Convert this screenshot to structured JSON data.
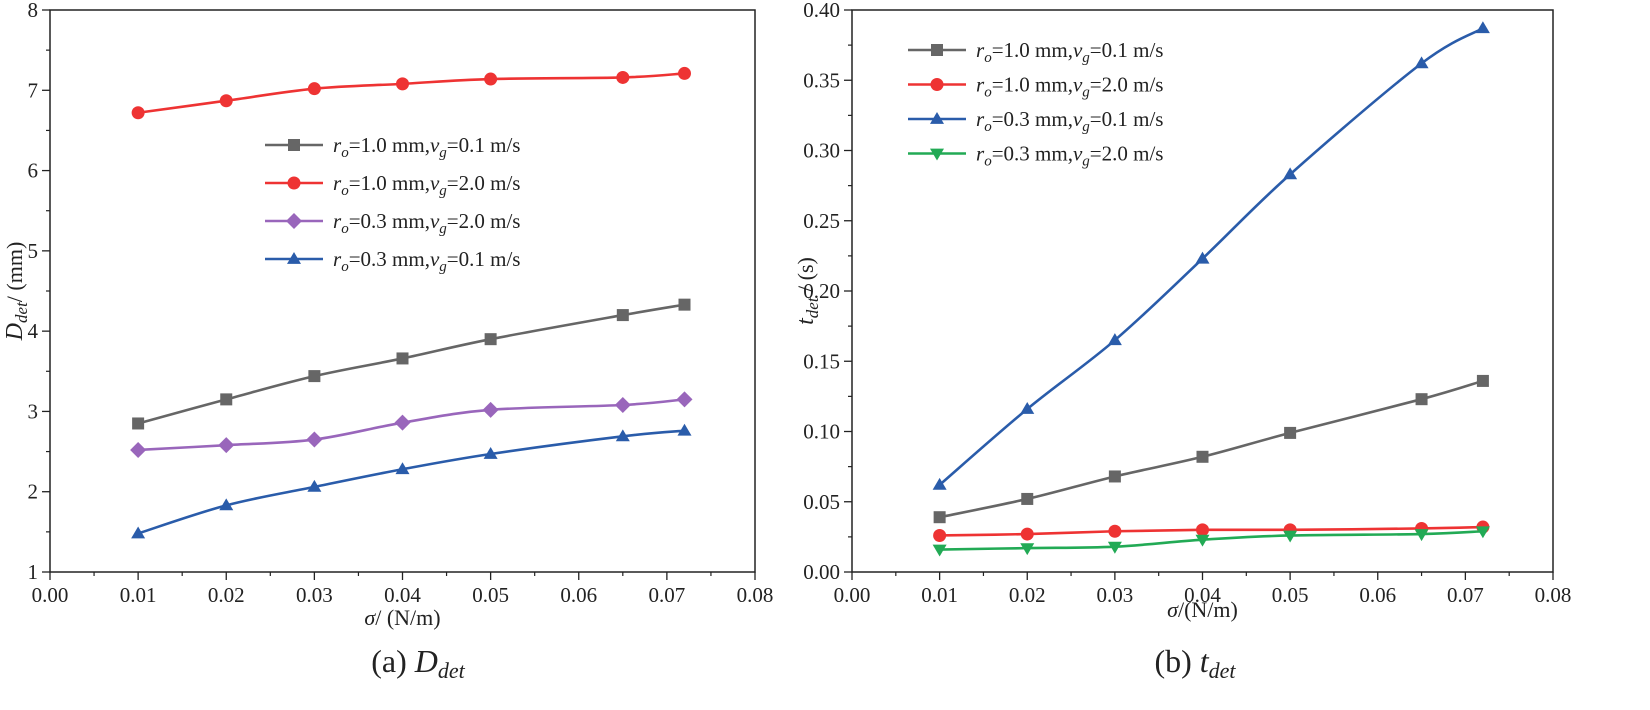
{
  "chart_data": [
    {
      "type": "line",
      "id": "a",
      "caption": {
        "prefix": "(a) ",
        "main": "D",
        "sub": "det"
      },
      "xlabel": {
        "symbol": "σ",
        "unit": "/ (N/m)"
      },
      "ylabel": {
        "main": "D",
        "sub": "det",
        "unit": "/ (mm)"
      },
      "xlim": [
        0,
        0.08
      ],
      "ylim": [
        1,
        8
      ],
      "xticks": [
        "0.00",
        "0.01",
        "0.02",
        "0.03",
        "0.04",
        "0.05",
        "0.06",
        "0.07",
        "0.08"
      ],
      "yticks": [
        "1",
        "2",
        "3",
        "4",
        "5",
        "6",
        "7",
        "8"
      ],
      "x": [
        0.01,
        0.02,
        0.03,
        0.04,
        0.05,
        0.065,
        0.072
      ],
      "legend_position": "upper-middle",
      "series": [
        {
          "r": "1.0",
          "v": "0.1",
          "color": "#666666",
          "marker": "square",
          "values": [
            2.85,
            3.15,
            3.44,
            3.66,
            3.9,
            4.2,
            4.33
          ]
        },
        {
          "r": "1.0",
          "v": "2.0",
          "color": "#ee3333",
          "marker": "circle",
          "values": [
            6.72,
            6.87,
            7.02,
            7.08,
            7.14,
            7.16,
            7.21
          ]
        },
        {
          "r": "0.3",
          "v": "2.0",
          "color": "#9966bb",
          "marker": "diamond",
          "values": [
            2.52,
            2.58,
            2.65,
            2.86,
            3.02,
            3.08,
            3.15
          ]
        },
        {
          "r": "0.3",
          "v": "0.1",
          "color": "#2a5caa",
          "marker": "triangle-up",
          "values": [
            1.48,
            1.83,
            2.06,
            2.28,
            2.47,
            2.69,
            2.76
          ]
        }
      ]
    },
    {
      "type": "line",
      "id": "b",
      "caption": {
        "prefix": "(b) ",
        "main": "t",
        "sub": "det"
      },
      "xlabel": {
        "symbol": "σ",
        "unit": "/(N/m)"
      },
      "ylabel": {
        "main": "t",
        "sub": "det",
        "unit": " / (s)"
      },
      "xlim": [
        0,
        0.08
      ],
      "ylim": [
        0,
        0.4
      ],
      "xticks": [
        "0.00",
        "0.01",
        "0.02",
        "0.03",
        "0.04",
        "0.05",
        "0.06",
        "0.07",
        "0.08"
      ],
      "yticks": [
        "0.00",
        "0.05",
        "0.10",
        "0.15",
        "0.20",
        "0.25",
        "0.30",
        "0.35",
        "0.40"
      ],
      "x": [
        0.01,
        0.02,
        0.03,
        0.04,
        0.05,
        0.065,
        0.072
      ],
      "legend_position": "top-left",
      "series": [
        {
          "r": "1.0",
          "v": "0.1",
          "color": "#666666",
          "marker": "square",
          "values": [
            0.039,
            0.052,
            0.068,
            0.082,
            0.099,
            0.123,
            0.136
          ]
        },
        {
          "r": "1.0",
          "v": "2.0",
          "color": "#ee3333",
          "marker": "circle",
          "values": [
            0.026,
            0.027,
            0.029,
            0.03,
            0.03,
            0.031,
            0.032
          ]
        },
        {
          "r": "0.3",
          "v": "0.1",
          "color": "#2a5caa",
          "marker": "triangle-up",
          "values": [
            0.062,
            0.116,
            0.165,
            0.223,
            0.283,
            0.362,
            0.387
          ]
        },
        {
          "r": "0.3",
          "v": "2.0",
          "color": "#22aa55",
          "marker": "triangle-down",
          "values": [
            0.016,
            0.017,
            0.018,
            0.023,
            0.026,
            0.027,
            0.029
          ]
        }
      ]
    }
  ]
}
